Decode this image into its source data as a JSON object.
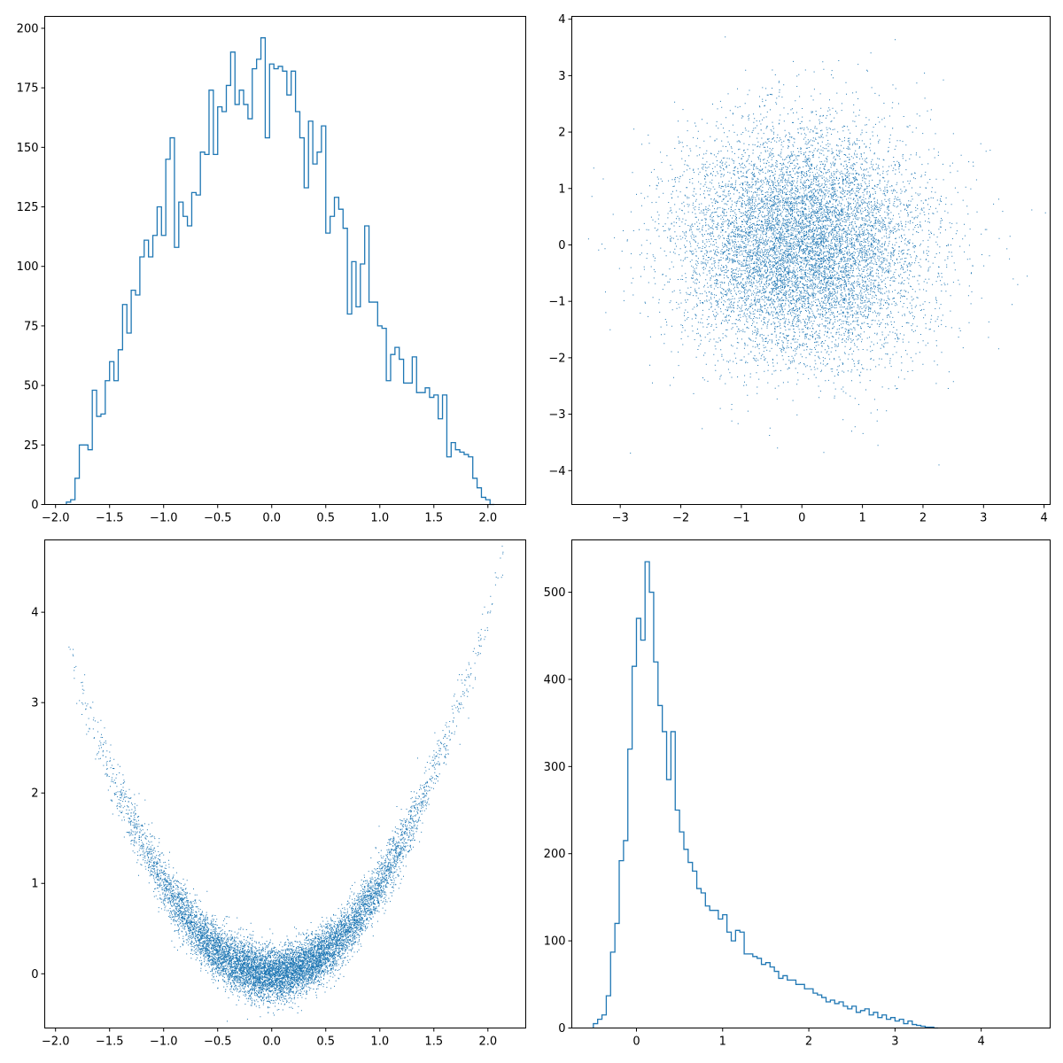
{
  "chart_data": [
    {
      "panel": "top-left",
      "type": "histogram",
      "histtype": "step",
      "color": "#1f77b4",
      "title": "",
      "xlabel": "",
      "ylabel": "",
      "xlim": [
        -2.1,
        2.35
      ],
      "ylim": [
        0,
        205
      ],
      "xticks": [
        -2.0,
        -1.5,
        -1.0,
        -0.5,
        0.0,
        0.5,
        1.0,
        1.5,
        2.0
      ],
      "yticks": [
        0,
        25,
        50,
        75,
        100,
        125,
        150,
        175,
        200
      ],
      "bins": {
        "start": -1.9,
        "width": 0.04
      },
      "counts": [
        1,
        2,
        11,
        25,
        25,
        23,
        48,
        37,
        38,
        52,
        60,
        52,
        65,
        84,
        72,
        90,
        88,
        104,
        111,
        104,
        113,
        125,
        113,
        145,
        154,
        108,
        127,
        121,
        117,
        131,
        130,
        148,
        147,
        174,
        147,
        167,
        165,
        176,
        190,
        168,
        174,
        168,
        162,
        183,
        187,
        196,
        154,
        185,
        183,
        184,
        182,
        172,
        182,
        165,
        154,
        133,
        161,
        143,
        148,
        159,
        114,
        121,
        129,
        124,
        116,
        80,
        102,
        83,
        101,
        117,
        85,
        85,
        75,
        74,
        52,
        63,
        66,
        61,
        51,
        51,
        62,
        47,
        47,
        49,
        45,
        46,
        36,
        46,
        20,
        26,
        23,
        22,
        21,
        20,
        11,
        7,
        3,
        2,
        0
      ]
    },
    {
      "panel": "top-right",
      "type": "scatter",
      "marker": "pixel",
      "color": "#1f77b4",
      "title": "",
      "xlabel": "",
      "ylabel": "",
      "xlim": [
        -3.8,
        4.1
      ],
      "ylim": [
        -4.6,
        4.05
      ],
      "xticks": [
        -3,
        -2,
        -1,
        0,
        1,
        2,
        3,
        4
      ],
      "yticks": [
        -4,
        -3,
        -2,
        -1,
        0,
        1,
        2,
        3,
        4
      ],
      "distribution": {
        "x_mean": 0,
        "x_std": 1,
        "y_mean": 0,
        "y_std": 1,
        "n_points": 10000
      }
    },
    {
      "panel": "bottom-left",
      "type": "scatter",
      "marker": "pixel",
      "color": "#1f77b4",
      "title": "",
      "xlabel": "",
      "ylabel": "",
      "xlim": [
        -2.1,
        2.35
      ],
      "ylim": [
        -0.6,
        4.8
      ],
      "xticks": [
        -2.0,
        -1.5,
        -1.0,
        -0.5,
        0.0,
        0.5,
        1.0,
        1.5,
        2.0
      ],
      "yticks": [
        0,
        1,
        2,
        3,
        4
      ],
      "relation": {
        "form": "y = x^2 + noise",
        "x_min": -1.9,
        "x_max": 2.15,
        "noise_std": 0.15,
        "n_points": 10000
      }
    },
    {
      "panel": "bottom-right",
      "type": "histogram",
      "histtype": "step",
      "color": "#1f77b4",
      "title": "",
      "xlabel": "",
      "ylabel": "",
      "xlim": [
        -0.75,
        4.8
      ],
      "ylim": [
        0,
        560
      ],
      "xticks": [
        0,
        1,
        2,
        3,
        4
      ],
      "yticks": [
        0,
        100,
        200,
        300,
        400,
        500
      ],
      "bins": {
        "start": -0.5,
        "width": 0.05
      },
      "counts": [
        5,
        10,
        15,
        37,
        87,
        120,
        192,
        215,
        320,
        415,
        470,
        445,
        535,
        500,
        420,
        370,
        340,
        285,
        340,
        250,
        225,
        205,
        190,
        180,
        160,
        155,
        140,
        135,
        135,
        125,
        130,
        110,
        100,
        112,
        110,
        85,
        85,
        82,
        80,
        73,
        75,
        70,
        65,
        57,
        60,
        55,
        55,
        50,
        50,
        45,
        45,
        40,
        38,
        35,
        30,
        32,
        28,
        30,
        25,
        22,
        25,
        18,
        20,
        22,
        15,
        18,
        12,
        15,
        10,
        12,
        8,
        10,
        5,
        8,
        4,
        3,
        2,
        1,
        1,
        0
      ]
    }
  ]
}
